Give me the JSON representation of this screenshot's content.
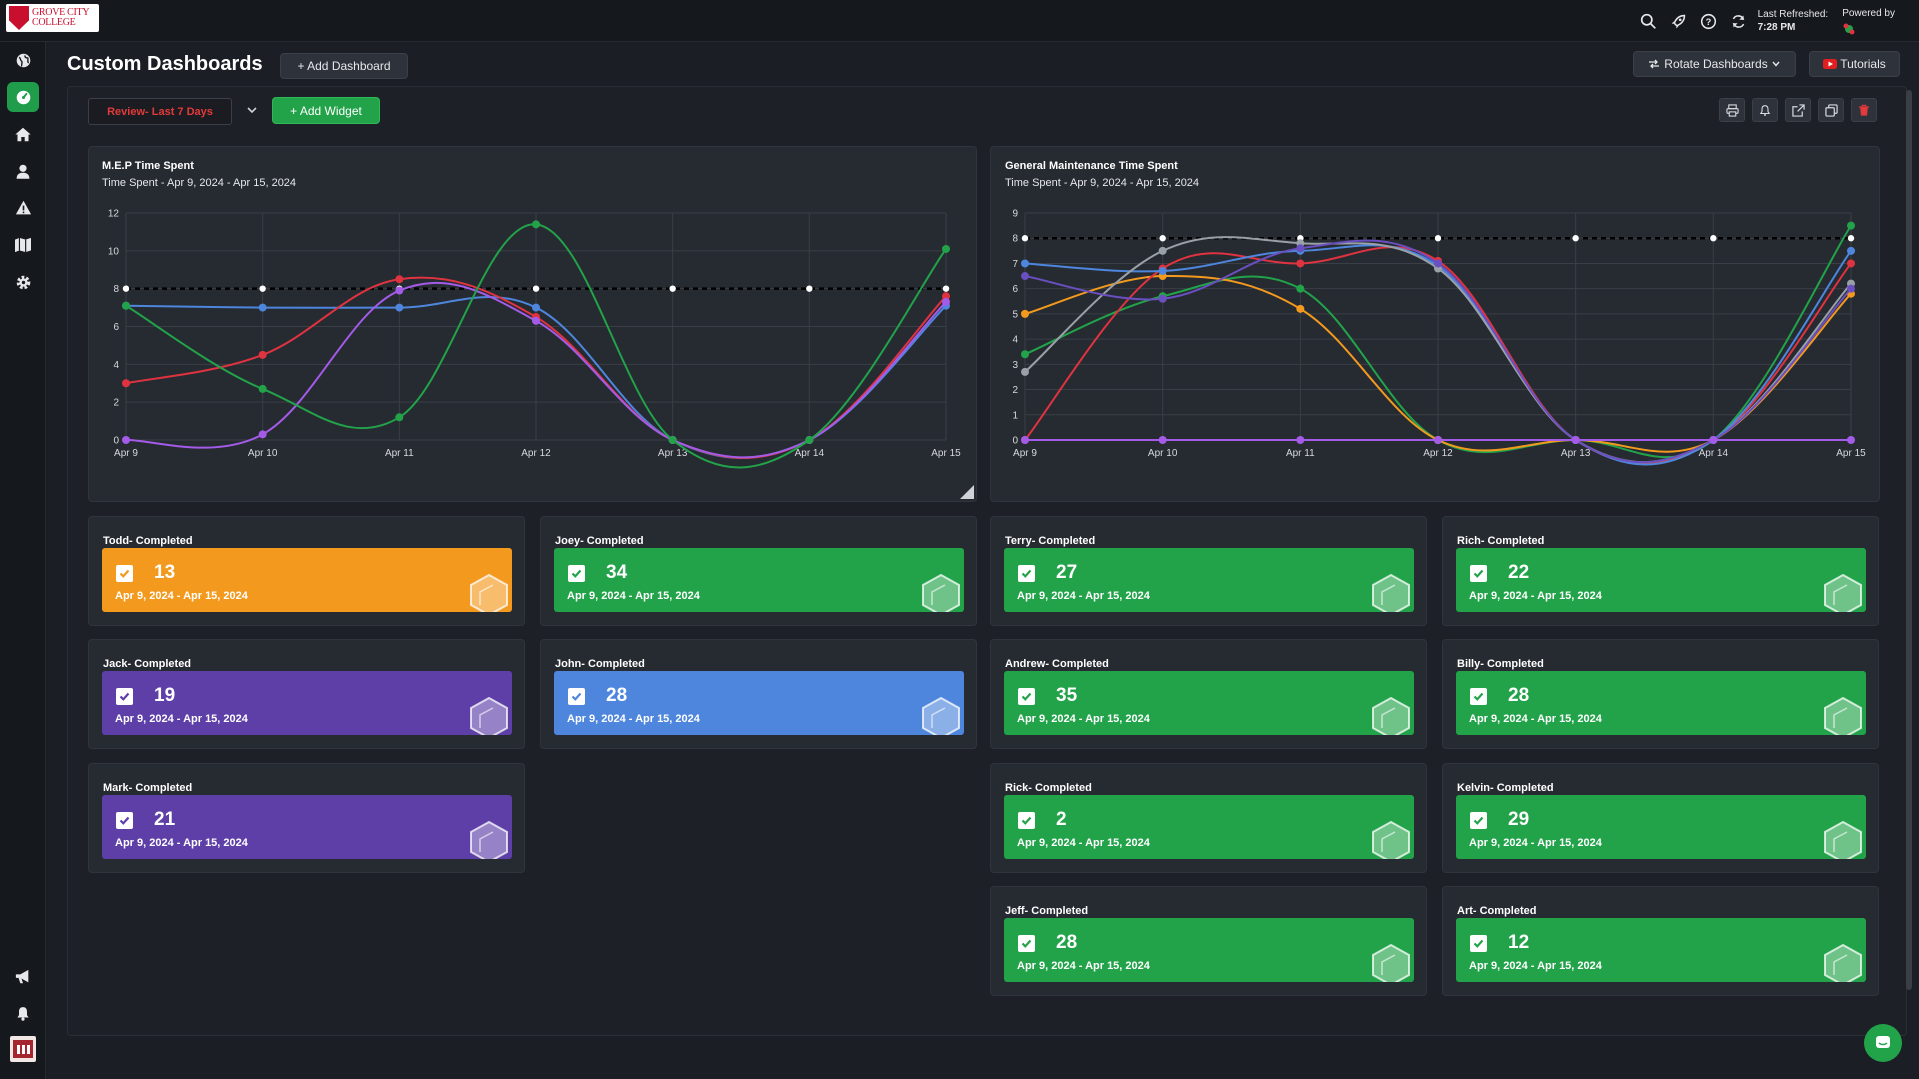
{
  "logo": {
    "text_line1": "GROVE CITY",
    "text_line2": "COLLEGE"
  },
  "topbar": {
    "icons": [
      "search-icon",
      "rocket-icon",
      "help-icon",
      "refresh-icon"
    ],
    "last_refreshed_label": "Last Refreshed:",
    "last_refreshed_time": "7:28 PM",
    "powered_by": "Powered by"
  },
  "sidebar": {
    "top_items": [
      "globe-icon",
      "dashboard-icon",
      "home-icon",
      "user-icon",
      "warning-icon",
      "map-icon",
      "gear-icon"
    ],
    "bottom_items": [
      "megaphone-icon",
      "bell-icon",
      "avatar"
    ]
  },
  "header": {
    "title": "Custom Dashboards",
    "add_dashboard": "+ Add Dashboard",
    "rotate_dashboards": "Rotate Dashboards",
    "tutorials": "Tutorials"
  },
  "toolbar": {
    "filter": "Review- Last 7 Days",
    "add_widget": "+ Add Widget",
    "tools": [
      "print-icon",
      "bell-icon",
      "share-icon",
      "copy-icon",
      "trash-icon"
    ]
  },
  "colors": {
    "green": "#22a34a",
    "orange": "#f39a1e",
    "purple": "#5e3fa8",
    "blue": "#4d86dc",
    "red": "#e03340",
    "accent_red": "#e23a3a"
  },
  "chart_data": [
    {
      "type": "line",
      "title": "M.E.P Time Spent",
      "subtitle": "Time Spent - Apr 9, 2024 - Apr 15, 2024",
      "categories": [
        "Apr 9",
        "Apr 10",
        "Apr 11",
        "Apr 12",
        "Apr 13",
        "Apr 14",
        "Apr 15"
      ],
      "ylim": [
        0,
        12
      ],
      "yticks": [
        0,
        2,
        4,
        6,
        8,
        10,
        12
      ],
      "grid": true,
      "series": [
        {
          "values": [
            8,
            8,
            8,
            8,
            8,
            8,
            8
          ],
          "color": "#000000",
          "dashed": true
        },
        {
          "values": [
            7.1,
            7.0,
            7.0,
            7.0,
            0,
            0,
            7.1
          ],
          "color": "#4d86dc"
        },
        {
          "values": [
            3.0,
            4.5,
            8.5,
            6.5,
            0,
            0,
            7.6
          ],
          "color": "#e03340"
        },
        {
          "values": [
            0,
            0.3,
            7.9,
            6.3,
            0,
            0,
            7.3
          ],
          "color": "#a35be8"
        },
        {
          "values": [
            7.1,
            2.7,
            1.2,
            11.4,
            0,
            0,
            10.1
          ],
          "color": "#22a34a"
        }
      ]
    },
    {
      "type": "line",
      "title": "General Maintenance Time Spent",
      "subtitle": "Time Spent - Apr 9, 2024 - Apr 15, 2024",
      "categories": [
        "Apr 9",
        "Apr 10",
        "Apr 11",
        "Apr 12",
        "Apr 13",
        "Apr 14",
        "Apr 15"
      ],
      "ylim": [
        0,
        9
      ],
      "yticks": [
        0,
        1,
        2,
        3,
        4,
        5,
        6,
        7,
        8,
        9
      ],
      "grid": true,
      "series": [
        {
          "values": [
            8,
            8,
            8,
            8,
            8,
            8,
            8
          ],
          "color": "#000000",
          "dashed": true
        },
        {
          "values": [
            3.4,
            5.7,
            6.0,
            0,
            0,
            0,
            8.5
          ],
          "color": "#22a34a"
        },
        {
          "values": [
            5.0,
            6.5,
            5.2,
            0,
            0,
            0,
            5.8
          ],
          "color": "#f39a1e"
        },
        {
          "values": [
            0,
            6.8,
            7.0,
            7.1,
            0,
            0,
            7.0
          ],
          "color": "#e03340"
        },
        {
          "values": [
            7.0,
            6.7,
            7.5,
            6.9,
            0,
            0,
            7.5
          ],
          "color": "#4d86dc"
        },
        {
          "values": [
            2.7,
            7.5,
            7.8,
            6.8,
            0,
            0,
            6.2
          ],
          "color": "#9aa0a8"
        },
        {
          "values": [
            6.5,
            5.6,
            7.6,
            7.0,
            0,
            0,
            6.0
          ],
          "color": "#6a4fc0"
        },
        {
          "values": [
            0,
            0,
            0,
            0,
            0,
            0,
            0
          ],
          "color": "#a35be8"
        }
      ]
    }
  ],
  "kpis": [
    {
      "label": "Todd- Completed",
      "value": "13",
      "date": "Apr 9, 2024 - Apr 15, 2024",
      "color": "#f39a1e"
    },
    {
      "label": "Joey- Completed",
      "value": "34",
      "date": "Apr 9, 2024 - Apr 15, 2024",
      "color": "#22a34a"
    },
    {
      "label": "Terry- Completed",
      "value": "27",
      "date": "Apr 9, 2024 - Apr 15, 2024",
      "color": "#22a34a"
    },
    {
      "label": "Rich- Completed",
      "value": "22",
      "date": "Apr 9, 2024 - Apr 15, 2024",
      "color": "#22a34a"
    },
    {
      "label": "Jack- Completed",
      "value": "19",
      "date": "Apr 9, 2024 - Apr 15, 2024",
      "color": "#5e3fa8"
    },
    {
      "label": "John- Completed",
      "value": "28",
      "date": "Apr 9, 2024 - Apr 15, 2024",
      "color": "#4d86dc"
    },
    {
      "label": "Andrew- Completed",
      "value": "35",
      "date": "Apr 9, 2024 - Apr 15, 2024",
      "color": "#22a34a"
    },
    {
      "label": "Billy- Completed",
      "value": "28",
      "date": "Apr 9, 2024 - Apr 15, 2024",
      "color": "#22a34a"
    },
    {
      "label": "Mark- Completed",
      "value": "21",
      "date": "Apr 9, 2024 - Apr 15, 2024",
      "color": "#5e3fa8"
    },
    {
      "label": "Rick- Completed",
      "value": "2",
      "date": "Apr 9, 2024 - Apr 15, 2024",
      "color": "#22a34a"
    },
    {
      "label": "Kelvin- Completed",
      "value": "29",
      "date": "Apr 9, 2024 - Apr 15, 2024",
      "color": "#22a34a"
    },
    {
      "label": "Jeff- Completed",
      "value": "28",
      "date": "Apr 9, 2024 - Apr 15, 2024",
      "color": "#22a34a"
    },
    {
      "label": "Art- Completed",
      "value": "12",
      "date": "Apr 9, 2024 - Apr 15, 2024",
      "color": "#22a34a"
    }
  ]
}
